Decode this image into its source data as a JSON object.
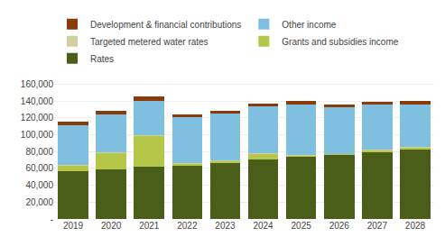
{
  "chart_data": {
    "type": "bar",
    "stacked": true,
    "categories": [
      "2019",
      "2020",
      "2021",
      "2022",
      "2023",
      "2024",
      "2025",
      "2026",
      "2027",
      "2028"
    ],
    "series": [
      {
        "name": "Rates",
        "color": "#4a5e1a",
        "values": [
          57000,
          59000,
          62000,
          64000,
          67000,
          71000,
          74000,
          76000,
          80000,
          82000
        ]
      },
      {
        "name": "Grants and subsidies income",
        "color": "#b5c748",
        "values": [
          7000,
          20000,
          37000,
          2000,
          2000,
          7000,
          1000,
          1000,
          2000,
          3000
        ]
      },
      {
        "name": "Targeted metered water rates",
        "color": "#d4cfa0",
        "values": [
          500,
          500,
          500,
          500,
          500,
          500,
          500,
          500,
          500,
          500
        ]
      },
      {
        "name": "Other income",
        "color": "#7fbfdf",
        "values": [
          47000,
          45000,
          41000,
          54000,
          56000,
          55000,
          60000,
          55000,
          53000,
          50000
        ]
      },
      {
        "name": "Development & financial contributions",
        "color": "#8b3a0a",
        "values": [
          4000,
          3500,
          4500,
          3000,
          2500,
          3000,
          5000,
          3500,
          4000,
          4500
        ]
      }
    ],
    "ylim": [
      0,
      170000
    ],
    "yticks": [
      {
        "value": 0,
        "label": "-"
      },
      {
        "value": 20000,
        "label": "20,000"
      },
      {
        "value": 40000,
        "label": "40,000"
      },
      {
        "value": 60000,
        "label": "60,000"
      },
      {
        "value": 80000,
        "label": "80,000"
      },
      {
        "value": 100000,
        "label": "100,000"
      },
      {
        "value": 120000,
        "label": "120,000"
      },
      {
        "value": 140000,
        "label": "140,000"
      },
      {
        "value": 160000,
        "label": "160,000"
      }
    ],
    "grid": true,
    "legend": "upper left"
  }
}
